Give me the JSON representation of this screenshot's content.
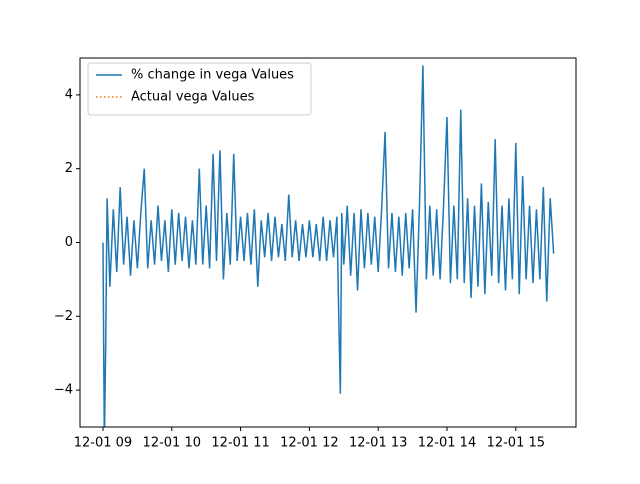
{
  "chart_data": {
    "type": "line",
    "xlim": [
      8.666,
      15.875
    ],
    "xticks": [
      {
        "value": 9,
        "label": "12-01 09"
      },
      {
        "value": 10,
        "label": "12-01 10"
      },
      {
        "value": 11,
        "label": "12-01 11"
      },
      {
        "value": 12,
        "label": "12-01 12"
      },
      {
        "value": 13,
        "label": "12-01 13"
      },
      {
        "value": 14,
        "label": "12-01 14"
      },
      {
        "value": 15,
        "label": "12-01 15"
      }
    ],
    "ylim": [
      -5,
      5
    ],
    "yticks": [
      {
        "value": -4,
        "label": "−4"
      },
      {
        "value": -2,
        "label": "−2"
      },
      0,
      2,
      4
    ],
    "legend": "upper left",
    "x": [
      9.0,
      9.02,
      9.04,
      9.06,
      9.1,
      9.15,
      9.2,
      9.25,
      9.3,
      9.35,
      9.4,
      9.45,
      9.5,
      9.55,
      9.6,
      9.65,
      9.7,
      9.75,
      9.8,
      9.85,
      9.9,
      9.95,
      10.0,
      10.05,
      10.1,
      10.15,
      10.2,
      10.25,
      10.3,
      10.35,
      10.4,
      10.45,
      10.5,
      10.55,
      10.6,
      10.65,
      10.7,
      10.75,
      10.8,
      10.85,
      10.9,
      10.95,
      11.0,
      11.05,
      11.1,
      11.15,
      11.2,
      11.25,
      11.3,
      11.35,
      11.4,
      11.45,
      11.5,
      11.55,
      11.6,
      11.65,
      11.7,
      11.75,
      11.8,
      11.85,
      11.9,
      11.95,
      12.0,
      12.05,
      12.1,
      12.15,
      12.2,
      12.25,
      12.3,
      12.35,
      12.4,
      12.43,
      12.45,
      12.47,
      12.5,
      12.55,
      12.6,
      12.65,
      12.7,
      12.75,
      12.8,
      12.85,
      12.9,
      12.95,
      13.0,
      13.05,
      13.1,
      13.15,
      13.2,
      13.25,
      13.3,
      13.35,
      13.4,
      13.45,
      13.5,
      13.55,
      13.6,
      13.65,
      13.7,
      13.75,
      13.8,
      13.85,
      13.9,
      13.95,
      14.0,
      14.05,
      14.1,
      14.15,
      14.2,
      14.25,
      14.3,
      14.35,
      14.4,
      14.45,
      14.5,
      14.55,
      14.6,
      14.65,
      14.7,
      14.75,
      14.8,
      14.85,
      14.9,
      14.95,
      15.0,
      15.05,
      15.1,
      15.15,
      15.2,
      15.25,
      15.3,
      15.35,
      15.4,
      15.45,
      15.5,
      15.55
    ],
    "series": [
      {
        "name": "% change in vega Values",
        "color": "#1f77b4",
        "style": "solid",
        "values": [
          0,
          -5.5,
          -2.7,
          1.2,
          -1.2,
          0.9,
          -0.8,
          1.5,
          -0.6,
          0.7,
          -0.9,
          0.6,
          -0.7,
          0.8,
          2.0,
          -0.7,
          0.6,
          -0.6,
          1.0,
          -0.5,
          0.6,
          -0.8,
          0.9,
          -0.6,
          0.8,
          -0.5,
          0.7,
          -0.7,
          0.6,
          -0.6,
          2.0,
          -0.6,
          1.0,
          -0.7,
          2.4,
          -0.5,
          2.5,
          -1.0,
          0.8,
          -0.6,
          2.4,
          -0.5,
          0.7,
          -0.5,
          0.8,
          -0.6,
          0.9,
          -1.2,
          0.6,
          -0.4,
          0.8,
          -0.5,
          0.7,
          -0.4,
          0.5,
          -0.5,
          1.3,
          -0.4,
          0.6,
          -0.5,
          0.5,
          -0.4,
          0.6,
          -0.4,
          0.5,
          -0.5,
          0.7,
          -0.5,
          0.6,
          -0.4,
          0.7,
          -2.3,
          -4.1,
          0.8,
          -0.6,
          1.0,
          -0.9,
          0.8,
          -1.3,
          0.9,
          -0.7,
          0.8,
          -0.6,
          0.7,
          -0.8,
          0.9,
          3.0,
          -0.7,
          0.8,
          -0.8,
          0.7,
          -0.9,
          0.8,
          -0.7,
          0.9,
          -1.9,
          1.0,
          4.8,
          -1.0,
          1.0,
          -0.9,
          0.9,
          -1.0,
          1.0,
          3.4,
          -1.1,
          1.0,
          -1.0,
          3.6,
          -1.1,
          1.2,
          -1.5,
          1.0,
          -1.2,
          1.6,
          -1.4,
          1.1,
          -0.9,
          2.8,
          -1.1,
          1.0,
          -1.3,
          1.2,
          -1.0,
          2.7,
          -1.4,
          1.8,
          -1.0,
          1.0,
          -1.1,
          0.9,
          -1.0,
          1.5,
          -1.6,
          1.2,
          -0.3
        ]
      },
      {
        "name": "Actual vega Values",
        "color": "#ff7f0e",
        "style": "dotted"
      }
    ]
  }
}
